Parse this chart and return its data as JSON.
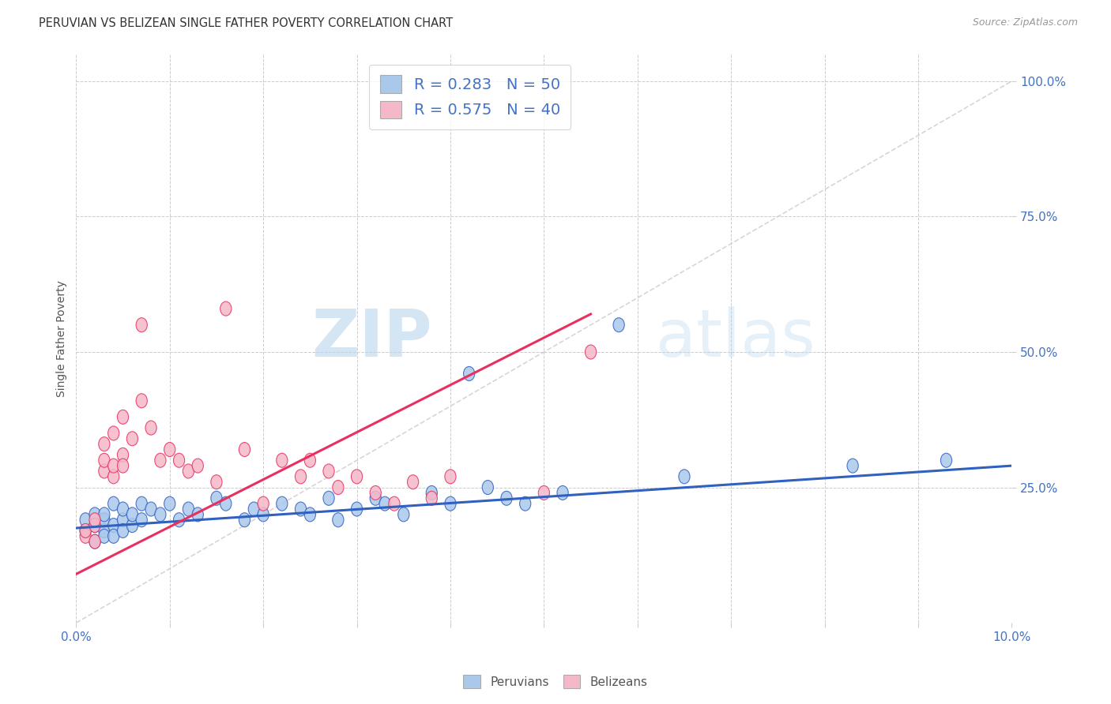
{
  "title": "PERUVIAN VS BELIZEAN SINGLE FATHER POVERTY CORRELATION CHART",
  "source": "Source: ZipAtlas.com",
  "ylabel": "Single Father Poverty",
  "xlim": [
    0.0,
    0.1
  ],
  "ylim": [
    0.0,
    1.05
  ],
  "peruvian_color": "#aac8ea",
  "belizean_color": "#f5b8c8",
  "peruvian_R": 0.283,
  "peruvian_N": 50,
  "belizean_R": 0.575,
  "belizean_N": 40,
  "peruvian_line_color": "#3060c0",
  "belizean_line_color": "#e83060",
  "diagonal_color": "#cccccc",
  "watermark_zip": "ZIP",
  "watermark_atlas": "atlas",
  "legend_label_peruvians": "Peruvians",
  "legend_label_belizeans": "Belizeans",
  "peruvian_x": [
    0.001,
    0.001,
    0.002,
    0.002,
    0.002,
    0.003,
    0.003,
    0.003,
    0.003,
    0.004,
    0.004,
    0.004,
    0.005,
    0.005,
    0.005,
    0.006,
    0.006,
    0.007,
    0.007,
    0.008,
    0.009,
    0.01,
    0.011,
    0.012,
    0.013,
    0.015,
    0.016,
    0.018,
    0.019,
    0.02,
    0.022,
    0.024,
    0.025,
    0.027,
    0.028,
    0.03,
    0.032,
    0.033,
    0.035,
    0.038,
    0.04,
    0.042,
    0.044,
    0.046,
    0.048,
    0.052,
    0.058,
    0.065,
    0.083,
    0.093
  ],
  "peruvian_y": [
    0.17,
    0.19,
    0.15,
    0.2,
    0.18,
    0.17,
    0.19,
    0.16,
    0.2,
    0.18,
    0.16,
    0.22,
    0.19,
    0.17,
    0.21,
    0.18,
    0.2,
    0.19,
    0.22,
    0.21,
    0.2,
    0.22,
    0.19,
    0.21,
    0.2,
    0.23,
    0.22,
    0.19,
    0.21,
    0.2,
    0.22,
    0.21,
    0.2,
    0.23,
    0.19,
    0.21,
    0.23,
    0.22,
    0.2,
    0.24,
    0.22,
    0.46,
    0.25,
    0.23,
    0.22,
    0.24,
    0.55,
    0.27,
    0.29,
    0.3
  ],
  "belizean_x": [
    0.001,
    0.001,
    0.002,
    0.002,
    0.002,
    0.003,
    0.003,
    0.003,
    0.004,
    0.004,
    0.004,
    0.005,
    0.005,
    0.005,
    0.006,
    0.007,
    0.007,
    0.008,
    0.009,
    0.01,
    0.011,
    0.012,
    0.013,
    0.015,
    0.016,
    0.018,
    0.02,
    0.022,
    0.024,
    0.025,
    0.027,
    0.028,
    0.03,
    0.032,
    0.034,
    0.036,
    0.038,
    0.04,
    0.05,
    0.055
  ],
  "belizean_y": [
    0.16,
    0.17,
    0.15,
    0.18,
    0.19,
    0.28,
    0.3,
    0.33,
    0.27,
    0.29,
    0.35,
    0.31,
    0.29,
    0.38,
    0.34,
    0.41,
    0.55,
    0.36,
    0.3,
    0.32,
    0.3,
    0.28,
    0.29,
    0.26,
    0.58,
    0.32,
    0.22,
    0.3,
    0.27,
    0.3,
    0.28,
    0.25,
    0.27,
    0.24,
    0.22,
    0.26,
    0.23,
    0.27,
    0.24,
    0.5
  ],
  "peruvian_line_x0": 0.0,
  "peruvian_line_y0": 0.175,
  "peruvian_line_x1": 0.1,
  "peruvian_line_y1": 0.29,
  "belizean_line_x0": 0.0,
  "belizean_line_y0": 0.09,
  "belizean_line_x1": 0.055,
  "belizean_line_y1": 0.57
}
